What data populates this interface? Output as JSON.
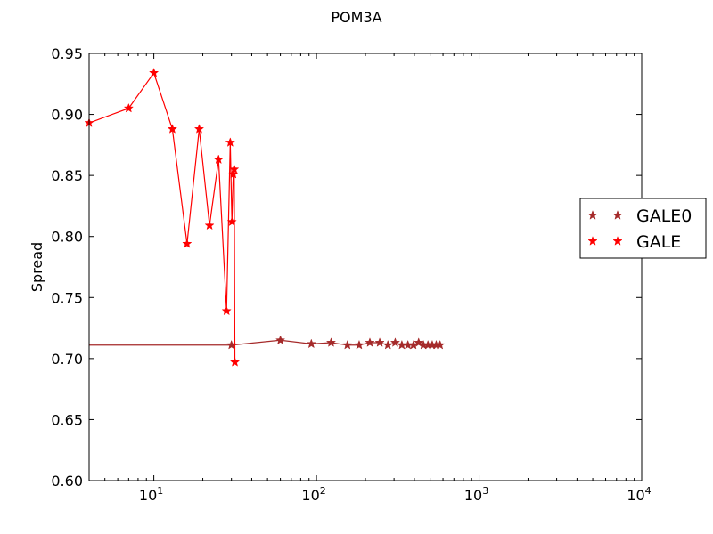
{
  "chart_data": {
    "type": "line",
    "title": "POM3A",
    "xlabel": "",
    "ylabel": "Spread",
    "xscale": "log",
    "xlim": [
      4,
      10000
    ],
    "ylim": [
      0.6,
      0.95
    ],
    "x_ticks": [
      {
        "value": 10,
        "base": "10",
        "exp": "1"
      },
      {
        "value": 100,
        "base": "10",
        "exp": "2"
      },
      {
        "value": 1000,
        "base": "10",
        "exp": "3"
      },
      {
        "value": 10000,
        "base": "10",
        "exp": "4"
      }
    ],
    "y_ticks": [
      "0.60",
      "0.65",
      "0.70",
      "0.75",
      "0.80",
      "0.85",
      "0.90",
      "0.95"
    ],
    "grid": false,
    "legend_position": "right",
    "series": [
      {
        "name": "GALE0",
        "color": "#a52a2a",
        "marker": "star",
        "line_start_x": 4,
        "x": [
          30,
          60,
          93,
          123,
          155,
          183,
          213,
          245,
          275,
          305,
          335,
          365,
          395,
          425,
          455,
          485,
          515,
          545,
          575
        ],
        "y": [
          0.711,
          0.715,
          0.712,
          0.713,
          0.711,
          0.711,
          0.713,
          0.713,
          0.711,
          0.713,
          0.711,
          0.711,
          0.711,
          0.713,
          0.711,
          0.711,
          0.711,
          0.711,
          0.711
        ]
      },
      {
        "name": "GALE",
        "color": "#ff0000",
        "marker": "star",
        "line_start_x": 4,
        "x": [
          4,
          7,
          10,
          13,
          16,
          19,
          22,
          25,
          28,
          29.5,
          30.2,
          30.8,
          31.2,
          31.5
        ],
        "y": [
          0.893,
          0.905,
          0.934,
          0.888,
          0.794,
          0.888,
          0.809,
          0.863,
          0.739,
          0.877,
          0.812,
          0.851,
          0.855,
          0.697
        ]
      }
    ]
  }
}
